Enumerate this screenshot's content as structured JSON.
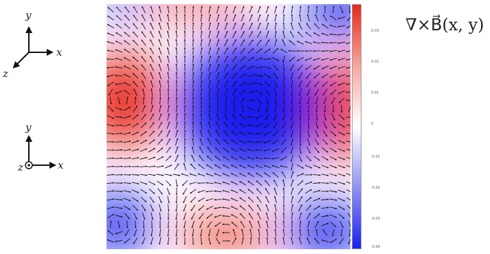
{
  "axes_top": {
    "y": "y",
    "x": "x",
    "z": "z"
  },
  "axes_bottom": {
    "y": "y",
    "x": "x",
    "z": "z"
  },
  "formula": "∇×B⃗(x, y)",
  "colorbar": {
    "colors": {
      "max": "#e8271a",
      "mid": "#ffffff",
      "min": "#1a1ff0"
    },
    "ticks": [
      "0.03",
      "0.02",
      "0.01",
      "0",
      "-0.01",
      "-0.02",
      "-0.03",
      "-0.04"
    ]
  }
}
